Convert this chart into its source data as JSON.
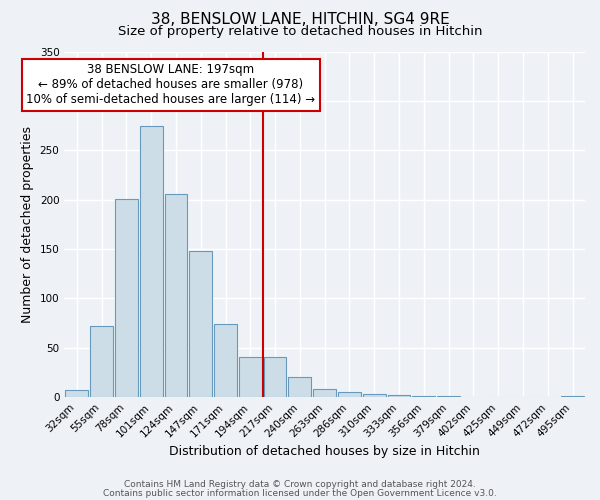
{
  "title": "38, BENSLOW LANE, HITCHIN, SG4 9RE",
  "subtitle": "Size of property relative to detached houses in Hitchin",
  "xlabel": "Distribution of detached houses by size in Hitchin",
  "ylabel": "Number of detached properties",
  "bin_labels": [
    "32sqm",
    "55sqm",
    "78sqm",
    "101sqm",
    "124sqm",
    "147sqm",
    "171sqm",
    "194sqm",
    "217sqm",
    "240sqm",
    "263sqm",
    "286sqm",
    "310sqm",
    "333sqm",
    "356sqm",
    "379sqm",
    "402sqm",
    "425sqm",
    "449sqm",
    "472sqm",
    "495sqm"
  ],
  "bar_heights": [
    7,
    72,
    201,
    275,
    206,
    148,
    74,
    41,
    41,
    20,
    8,
    5,
    3,
    2,
    1,
    1,
    0,
    0,
    0,
    0,
    1
  ],
  "bar_color": "#ccdde8",
  "bar_edge_color": "#6699bb",
  "vline_x_idx": 7.5,
  "vline_color": "#cc0000",
  "annotation_title": "38 BENSLOW LANE: 197sqm",
  "annotation_line1": "← 89% of detached houses are smaller (978)",
  "annotation_line2": "10% of semi-detached houses are larger (114) →",
  "annotation_box_color": "#ffffff",
  "annotation_box_edge": "#cc0000",
  "ylim": [
    0,
    350
  ],
  "yticks": [
    0,
    50,
    100,
    150,
    200,
    250,
    300,
    350
  ],
  "footer1": "Contains HM Land Registry data © Crown copyright and database right 2024.",
  "footer2": "Contains public sector information licensed under the Open Government Licence v3.0.",
  "bg_color": "#eef2f7",
  "grid_color": "#ffffff",
  "title_fontsize": 11,
  "subtitle_fontsize": 9.5,
  "axis_label_fontsize": 9,
  "tick_fontsize": 7.5,
  "annotation_fontsize": 8.5,
  "footer_fontsize": 6.5
}
